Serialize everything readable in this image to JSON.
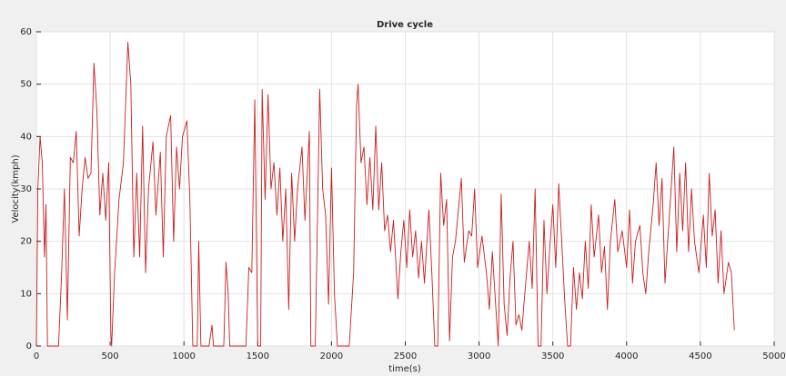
{
  "chart_data": {
    "type": "line",
    "title": "Drive cycle",
    "x_label": "time(s)",
    "y_label": "Velocity(kmph)",
    "x": [
      0,
      10,
      25,
      40,
      55,
      65,
      75,
      150,
      170,
      190,
      210,
      230,
      250,
      270,
      290,
      310,
      330,
      350,
      370,
      390,
      410,
      430,
      450,
      470,
      490,
      505,
      510,
      530,
      560,
      590,
      620,
      640,
      660,
      680,
      700,
      720,
      740,
      760,
      790,
      810,
      840,
      860,
      880,
      910,
      930,
      950,
      970,
      990,
      1020,
      1040,
      1060,
      1090,
      1100,
      1115,
      1170,
      1190,
      1200,
      1270,
      1285,
      1300,
      1310,
      1420,
      1440,
      1460,
      1480,
      1500,
      1520,
      1530,
      1550,
      1570,
      1590,
      1610,
      1630,
      1650,
      1670,
      1690,
      1710,
      1730,
      1750,
      1770,
      1800,
      1820,
      1850,
      1860,
      1890,
      1920,
      1940,
      1960,
      1980,
      2000,
      2020,
      2040,
      2120,
      2150,
      2170,
      2180,
      2200,
      2220,
      2240,
      2260,
      2280,
      2300,
      2320,
      2340,
      2360,
      2380,
      2400,
      2420,
      2450,
      2470,
      2490,
      2510,
      2530,
      2550,
      2570,
      2590,
      2610,
      2630,
      2660,
      2680,
      2700,
      2720,
      2740,
      2760,
      2780,
      2800,
      2820,
      2840,
      2860,
      2880,
      2900,
      2930,
      2950,
      2970,
      2990,
      3020,
      3050,
      3070,
      3090,
      3110,
      3130,
      3150,
      3170,
      3190,
      3210,
      3230,
      3250,
      3270,
      3290,
      3310,
      3340,
      3360,
      3380,
      3400,
      3420,
      3440,
      3460,
      3480,
      3500,
      3520,
      3540,
      3560,
      3580,
      3600,
      3620,
      3640,
      3660,
      3680,
      3700,
      3720,
      3740,
      3760,
      3780,
      3810,
      3830,
      3850,
      3870,
      3890,
      3920,
      3940,
      3970,
      4000,
      4020,
      4040,
      4060,
      4090,
      4110,
      4130,
      4150,
      4180,
      4200,
      4220,
      4240,
      4260,
      4290,
      4320,
      4340,
      4360,
      4380,
      4400,
      4420,
      4440,
      4460,
      4490,
      4520,
      4540,
      4560,
      4580,
      4600,
      4620,
      4640,
      4660,
      4690,
      4710,
      4730
    ],
    "series": [
      {
        "color": "#c81e1e",
        "values": [
          0,
          30,
          40,
          35,
          17,
          27,
          0,
          0,
          13,
          30,
          5,
          36,
          35,
          41,
          21,
          30,
          36,
          32,
          33,
          54,
          45,
          25,
          33,
          24,
          35,
          2,
          0,
          14,
          28,
          35,
          58,
          50,
          17,
          33,
          17,
          42,
          14,
          30,
          39,
          25,
          37,
          17,
          40,
          44,
          20,
          38,
          30,
          40,
          43,
          28,
          0,
          0,
          20,
          0,
          0,
          4,
          0,
          0,
          16,
          10,
          0,
          0,
          15,
          14,
          47,
          0,
          0,
          49,
          28,
          48,
          30,
          35,
          25,
          34,
          20,
          30,
          7,
          33,
          20,
          30,
          38,
          24,
          41,
          0,
          0,
          49,
          30,
          25,
          8,
          34,
          10,
          0,
          0,
          14,
          46,
          50,
          35,
          38,
          27,
          36,
          26,
          42,
          26,
          35,
          22,
          25,
          18,
          24,
          9,
          18,
          24,
          15,
          26,
          17,
          22,
          13,
          20,
          12,
          26,
          14,
          0,
          0,
          33,
          23,
          28,
          1,
          17,
          20,
          26,
          32,
          16,
          22,
          21,
          30,
          15,
          21,
          14,
          7,
          18,
          9,
          0,
          29,
          8,
          2,
          13,
          20,
          4,
          6,
          3,
          10,
          20,
          11,
          30,
          0,
          0,
          24,
          10,
          19,
          27,
          15,
          31,
          20,
          9,
          0,
          0,
          15,
          7,
          14,
          9,
          20,
          11,
          27,
          17,
          25,
          14,
          19,
          7,
          20,
          28,
          18,
          22,
          15,
          26,
          12,
          20,
          23,
          14,
          10,
          18,
          27,
          35,
          23,
          32,
          12,
          25,
          38,
          18,
          33,
          22,
          35,
          18,
          30,
          20,
          14,
          25,
          15,
          33,
          21,
          26,
          12,
          22,
          10,
          16,
          14,
          3
        ]
      }
    ],
    "xlim": [
      0,
      5000
    ],
    "xticks": [
      0,
      500,
      1000,
      1500,
      2000,
      2500,
      3000,
      3500,
      4000,
      4500,
      5000
    ],
    "ylim": [
      0,
      60
    ],
    "yticks": [
      0,
      10,
      20,
      30,
      40,
      50,
      60
    ],
    "grid": true
  }
}
